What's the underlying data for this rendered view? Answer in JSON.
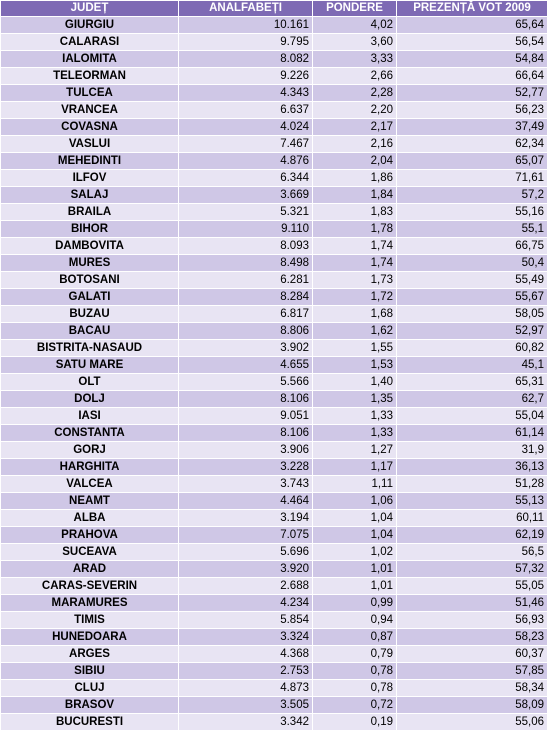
{
  "table": {
    "headers": {
      "county": "JUDEȚ",
      "illiterates": "ANALFABEȚI",
      "weight": "PONDERE",
      "turnout": "PREZENȚĂ VOT 2009"
    },
    "rows": [
      {
        "county": "GIURGIU",
        "illiterates": "10.161",
        "weight": "4,02",
        "turnout": "65,64"
      },
      {
        "county": "CALARASI",
        "illiterates": "9.795",
        "weight": "3,60",
        "turnout": "56,54"
      },
      {
        "county": "IALOMITA",
        "illiterates": "8.082",
        "weight": "3,33",
        "turnout": "54,84"
      },
      {
        "county": "TELEORMAN",
        "illiterates": "9.226",
        "weight": "2,66",
        "turnout": "66,64"
      },
      {
        "county": "TULCEA",
        "illiterates": "4.343",
        "weight": "2,28",
        "turnout": "52,77"
      },
      {
        "county": "VRANCEA",
        "illiterates": "6.637",
        "weight": "2,20",
        "turnout": "56,23"
      },
      {
        "county": "COVASNA",
        "illiterates": "4.024",
        "weight": "2,17",
        "turnout": "37,49"
      },
      {
        "county": "VASLUI",
        "illiterates": "7.467",
        "weight": "2,16",
        "turnout": "62,34"
      },
      {
        "county": "MEHEDINTI",
        "illiterates": "4.876",
        "weight": "2,04",
        "turnout": "65,07"
      },
      {
        "county": "ILFOV",
        "illiterates": "6.344",
        "weight": "1,86",
        "turnout": "71,61"
      },
      {
        "county": "SALAJ",
        "illiterates": "3.669",
        "weight": "1,84",
        "turnout": "57,2"
      },
      {
        "county": "BRAILA",
        "illiterates": "5.321",
        "weight": "1,83",
        "turnout": "55,16"
      },
      {
        "county": "BIHOR",
        "illiterates": "9.110",
        "weight": "1,78",
        "turnout": "55,1"
      },
      {
        "county": "DAMBOVITA",
        "illiterates": "8.093",
        "weight": "1,74",
        "turnout": "66,75"
      },
      {
        "county": "MURES",
        "illiterates": "8.498",
        "weight": "1,74",
        "turnout": "50,4"
      },
      {
        "county": "BOTOSANI",
        "illiterates": "6.281",
        "weight": "1,73",
        "turnout": "55,49"
      },
      {
        "county": "GALATI",
        "illiterates": "8.284",
        "weight": "1,72",
        "turnout": "55,67"
      },
      {
        "county": "BUZAU",
        "illiterates": "6.817",
        "weight": "1,68",
        "turnout": "58,05"
      },
      {
        "county": "BACAU",
        "illiterates": "8.806",
        "weight": "1,62",
        "turnout": "52,97"
      },
      {
        "county": "BISTRITA-NASAUD",
        "illiterates": "3.902",
        "weight": "1,55",
        "turnout": "60,82"
      },
      {
        "county": "SATU MARE",
        "illiterates": "4.655",
        "weight": "1,53",
        "turnout": "45,1"
      },
      {
        "county": "OLT",
        "illiterates": "5.566",
        "weight": "1,40",
        "turnout": "65,31"
      },
      {
        "county": "DOLJ",
        "illiterates": "8.106",
        "weight": "1,35",
        "turnout": "62,7"
      },
      {
        "county": "IASI",
        "illiterates": "9.051",
        "weight": "1,33",
        "turnout": "55,04"
      },
      {
        "county": "CONSTANTA",
        "illiterates": "8.106",
        "weight": "1,33",
        "turnout": "61,14"
      },
      {
        "county": "GORJ",
        "illiterates": "3.906",
        "weight": "1,27",
        "turnout": "31,9"
      },
      {
        "county": "HARGHITA",
        "illiterates": "3.228",
        "weight": "1,17",
        "turnout": "36,13"
      },
      {
        "county": "VALCEA",
        "illiterates": "3.743",
        "weight": "1,11",
        "turnout": "51,28"
      },
      {
        "county": "NEAMT",
        "illiterates": "4.464",
        "weight": "1,06",
        "turnout": "55,13"
      },
      {
        "county": "ALBA",
        "illiterates": "3.194",
        "weight": "1,04",
        "turnout": "60,11"
      },
      {
        "county": "PRAHOVA",
        "illiterates": "7.075",
        "weight": "1,04",
        "turnout": "62,19"
      },
      {
        "county": "SUCEAVA",
        "illiterates": "5.696",
        "weight": "1,02",
        "turnout": "56,5"
      },
      {
        "county": "ARAD",
        "illiterates": "3.920",
        "weight": "1,01",
        "turnout": "57,32"
      },
      {
        "county": "CARAS-SEVERIN",
        "illiterates": "2.688",
        "weight": "1,01",
        "turnout": "55,05"
      },
      {
        "county": "MARAMURES",
        "illiterates": "4.234",
        "weight": "0,99",
        "turnout": "51,46"
      },
      {
        "county": "TIMIS",
        "illiterates": "5.854",
        "weight": "0,94",
        "turnout": "56,93"
      },
      {
        "county": "HUNEDOARA",
        "illiterates": "3.324",
        "weight": "0,87",
        "turnout": "58,23"
      },
      {
        "county": "ARGES",
        "illiterates": "4.368",
        "weight": "0,79",
        "turnout": "60,37"
      },
      {
        "county": "SIBIU",
        "illiterates": "2.753",
        "weight": "0,78",
        "turnout": "57,85"
      },
      {
        "county": "CLUJ",
        "illiterates": "4.873",
        "weight": "0,78",
        "turnout": "58,34"
      },
      {
        "county": "BRASOV",
        "illiterates": "3.505",
        "weight": "0,72",
        "turnout": "58,09"
      },
      {
        "county": "BUCURESTI",
        "illiterates": "3.342",
        "weight": "0,19",
        "turnout": "55,06"
      }
    ]
  }
}
